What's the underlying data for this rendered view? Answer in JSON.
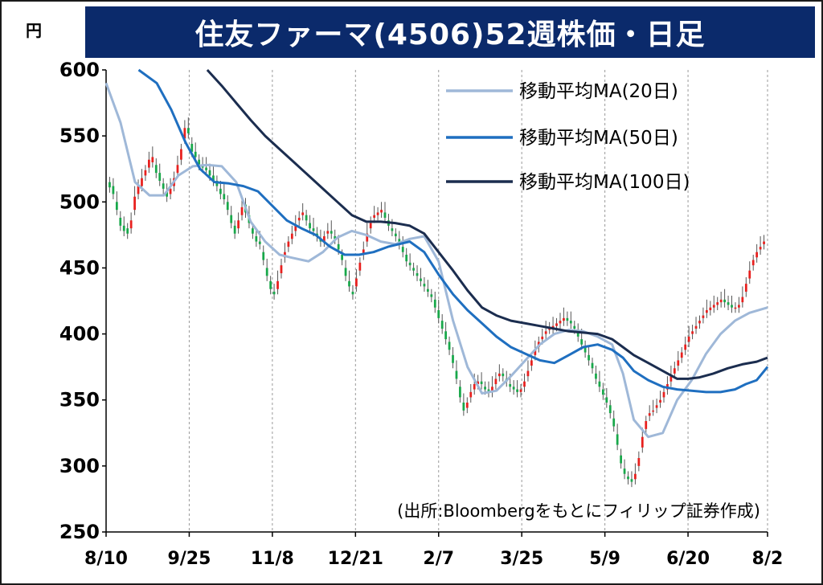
{
  "title": "住友ファーマ(4506)52週株価・日足",
  "unit": "円",
  "source_note": "(出所:Bloombergをもとにフィリップ証券作成)",
  "colors": {
    "up": "#e8201e",
    "down": "#18a84a",
    "title_bg": "#0b2a6b",
    "ma20": "#9fb8d8",
    "ma50": "#1f6fc0",
    "ma100": "#1b2d4f"
  },
  "chart_data": {
    "type": "candlestick",
    "title": "住友ファーマ(4506)52週株価・日足",
    "ylabel": "円",
    "ylim": [
      250,
      600
    ],
    "yticks": [
      250,
      300,
      350,
      400,
      450,
      500,
      550,
      600
    ],
    "xticks": [
      {
        "label": "8/10",
        "day": 0
      },
      {
        "label": "9/25",
        "day": 23
      },
      {
        "label": "11/8",
        "day": 46
      },
      {
        "label": "12/21",
        "day": 69
      },
      {
        "label": "2/7",
        "day": 92
      },
      {
        "label": "3/25",
        "day": 115
      },
      {
        "label": "5/9",
        "day": 138
      },
      {
        "label": "6/20",
        "day": 161
      },
      {
        "label": "8/2",
        "day": 183
      }
    ],
    "grid": "vertical",
    "legend": "top-right",
    "series": [
      {
        "name": "移動平均MA(20日)",
        "color": "#9fb8d8",
        "points": [
          [
            0,
            590
          ],
          [
            4,
            560
          ],
          [
            8,
            515
          ],
          [
            12,
            505
          ],
          [
            16,
            505
          ],
          [
            20,
            520
          ],
          [
            24,
            527
          ],
          [
            28,
            528
          ],
          [
            32,
            527
          ],
          [
            36,
            515
          ],
          [
            40,
            485
          ],
          [
            44,
            470
          ],
          [
            48,
            460
          ],
          [
            51,
            458
          ],
          [
            56,
            455
          ],
          [
            60,
            462
          ],
          [
            64,
            473
          ],
          [
            68,
            478
          ],
          [
            72,
            475
          ],
          [
            76,
            470
          ],
          [
            80,
            468
          ],
          [
            84,
            472
          ],
          [
            88,
            474
          ],
          [
            92,
            455
          ],
          [
            96,
            410
          ],
          [
            100,
            375
          ],
          [
            104,
            355
          ],
          [
            108,
            357
          ],
          [
            112,
            368
          ],
          [
            116,
            380
          ],
          [
            120,
            392
          ],
          [
            124,
            400
          ],
          [
            128,
            403
          ],
          [
            132,
            402
          ],
          [
            136,
            398
          ],
          [
            140,
            392
          ],
          [
            143,
            370
          ],
          [
            146,
            335
          ],
          [
            150,
            322
          ],
          [
            154,
            325
          ],
          [
            158,
            350
          ],
          [
            162,
            365
          ],
          [
            166,
            385
          ],
          [
            170,
            400
          ],
          [
            174,
            410
          ],
          [
            178,
            416
          ],
          [
            183,
            420
          ]
        ]
      },
      {
        "name": "移動平均MA(50日)",
        "color": "#1f6fc0",
        "points": [
          [
            9,
            600
          ],
          [
            14,
            590
          ],
          [
            18,
            570
          ],
          [
            22,
            545
          ],
          [
            26,
            525
          ],
          [
            30,
            515
          ],
          [
            34,
            514
          ],
          [
            38,
            512
          ],
          [
            42,
            508
          ],
          [
            46,
            497
          ],
          [
            50,
            486
          ],
          [
            54,
            480
          ],
          [
            58,
            475
          ],
          [
            62,
            466
          ],
          [
            66,
            460
          ],
          [
            70,
            460
          ],
          [
            74,
            462
          ],
          [
            78,
            466
          ],
          [
            84,
            470
          ],
          [
            88,
            462
          ],
          [
            92,
            445
          ],
          [
            96,
            430
          ],
          [
            100,
            418
          ],
          [
            104,
            408
          ],
          [
            108,
            398
          ],
          [
            112,
            390
          ],
          [
            116,
            385
          ],
          [
            120,
            380
          ],
          [
            124,
            378
          ],
          [
            128,
            384
          ],
          [
            132,
            390
          ],
          [
            136,
            392
          ],
          [
            140,
            388
          ],
          [
            143,
            382
          ],
          [
            146,
            372
          ],
          [
            150,
            365
          ],
          [
            154,
            360
          ],
          [
            158,
            358
          ],
          [
            162,
            357
          ],
          [
            166,
            356
          ],
          [
            170,
            356
          ],
          [
            174,
            358
          ],
          [
            177,
            362
          ],
          [
            180,
            365
          ],
          [
            183,
            375
          ]
        ]
      },
      {
        "name": "移動平均MA(100日)",
        "color": "#1b2d4f",
        "points": [
          [
            28,
            600
          ],
          [
            32,
            588
          ],
          [
            36,
            575
          ],
          [
            40,
            562
          ],
          [
            44,
            550
          ],
          [
            48,
            540
          ],
          [
            52,
            530
          ],
          [
            56,
            520
          ],
          [
            60,
            510
          ],
          [
            64,
            500
          ],
          [
            68,
            490
          ],
          [
            72,
            485
          ],
          [
            76,
            485
          ],
          [
            80,
            484
          ],
          [
            84,
            482
          ],
          [
            88,
            476
          ],
          [
            92,
            462
          ],
          [
            96,
            448
          ],
          [
            100,
            433
          ],
          [
            104,
            420
          ],
          [
            108,
            414
          ],
          [
            112,
            410
          ],
          [
            116,
            408
          ],
          [
            120,
            406
          ],
          [
            124,
            404
          ],
          [
            128,
            402
          ],
          [
            132,
            401
          ],
          [
            136,
            400
          ],
          [
            140,
            396
          ],
          [
            143,
            390
          ],
          [
            146,
            384
          ],
          [
            150,
            378
          ],
          [
            154,
            372
          ],
          [
            158,
            366
          ],
          [
            161,
            366
          ],
          [
            164,
            367
          ],
          [
            168,
            370
          ],
          [
            172,
            374
          ],
          [
            176,
            377
          ],
          [
            180,
            379
          ],
          [
            183,
            382
          ]
        ]
      }
    ],
    "close": [
      511,
      506,
      494,
      482,
      478,
      476,
      486,
      504,
      512,
      518,
      524,
      532,
      534,
      522,
      516,
      510,
      504,
      510,
      518,
      528,
      540,
      556,
      552,
      538,
      534,
      528,
      526,
      524,
      520,
      516,
      512,
      506,
      502,
      494,
      484,
      476,
      486,
      496,
      492,
      484,
      476,
      470,
      468,
      456,
      444,
      434,
      430,
      440,
      452,
      462,
      470,
      476,
      482,
      488,
      492,
      486,
      480,
      478,
      474,
      470,
      474,
      478,
      476,
      472,
      464,
      456,
      444,
      436,
      430,
      442,
      454,
      464,
      476,
      484,
      490,
      492,
      494,
      488,
      482,
      478,
      474,
      468,
      462,
      455,
      452,
      448,
      444,
      440,
      436,
      432,
      428,
      420,
      412,
      404,
      396,
      388,
      378,
      366,
      352,
      342,
      348,
      356,
      362,
      364,
      362,
      358,
      356,
      360,
      366,
      370,
      368,
      364,
      360,
      358,
      356,
      358,
      364,
      372,
      380,
      388,
      394,
      398,
      402,
      404,
      406,
      408,
      410,
      412,
      410,
      408,
      404,
      398,
      392,
      386,
      380,
      374,
      366,
      360,
      354,
      348,
      340,
      330,
      316,
      302,
      294,
      290,
      288,
      294,
      306,
      322,
      334,
      340,
      342,
      346,
      350,
      356,
      362,
      368,
      374,
      380,
      386,
      392,
      398,
      402,
      406,
      410,
      414,
      418,
      420,
      422,
      424,
      426,
      424,
      422,
      420,
      420,
      422,
      428,
      438,
      448,
      456,
      462,
      466,
      470
    ],
    "open": [
      515,
      512,
      500,
      488,
      482,
      480,
      480,
      494,
      506,
      512,
      520,
      526,
      530,
      528,
      522,
      514,
      508,
      506,
      512,
      522,
      532,
      548,
      556,
      544,
      538,
      532,
      528,
      526,
      524,
      520,
      516,
      510,
      506,
      500,
      490,
      482,
      480,
      490,
      498,
      490,
      480,
      474,
      470,
      462,
      450,
      440,
      432,
      434,
      446,
      458,
      466,
      472,
      478,
      486,
      490,
      490,
      484,
      480,
      476,
      472,
      470,
      476,
      478,
      474,
      468,
      460,
      450,
      440,
      432,
      436,
      448,
      460,
      470,
      480,
      488,
      490,
      492,
      492,
      486,
      480,
      476,
      472,
      466,
      460,
      454,
      450,
      446,
      442,
      438,
      434,
      430,
      426,
      418,
      410,
      402,
      394,
      384,
      372,
      360,
      348,
      344,
      352,
      358,
      362,
      364,
      360,
      358,
      356,
      362,
      368,
      370,
      366,
      362,
      360,
      358,
      356,
      360,
      368,
      376,
      384,
      390,
      396,
      400,
      404,
      404,
      406,
      408,
      410,
      412,
      410,
      406,
      402,
      396,
      390,
      384,
      378,
      370,
      364,
      358,
      352,
      346,
      336,
      324,
      308,
      298,
      292,
      290,
      290,
      300,
      314,
      328,
      338,
      342,
      344,
      348,
      352,
      358,
      364,
      370,
      376,
      382,
      388,
      394,
      400,
      404,
      408,
      412,
      416,
      418,
      420,
      422,
      424,
      426,
      424,
      422,
      420,
      420,
      424,
      432,
      442,
      452,
      458,
      464,
      468
    ]
  },
  "legend_labels": [
    "移動平均MA(20日)",
    "移動平均MA(50日)",
    "移動平均MA(100日)"
  ]
}
